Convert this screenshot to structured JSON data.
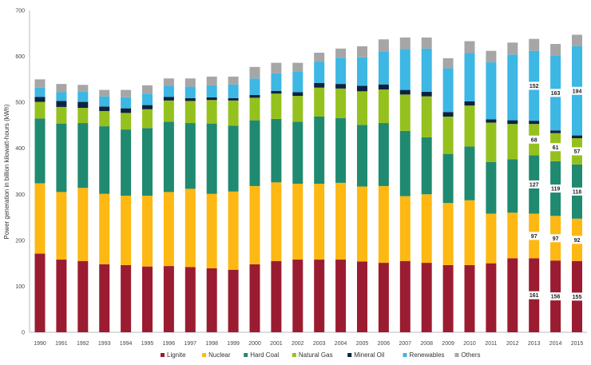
{
  "chart_data": {
    "type": "bar",
    "stacked": true,
    "title": "",
    "xlabel": "",
    "ylabel": "Power generation in billion kilowatt-hours (kWh)",
    "ylim": [
      0,
      700
    ],
    "yticks": [
      0,
      100,
      200,
      300,
      400,
      500,
      600,
      700
    ],
    "grid": false,
    "legend_position": "bottom",
    "categories": [
      "1990",
      "1991",
      "1992",
      "1993",
      "1994",
      "1995",
      "1996",
      "1997",
      "1998",
      "1999",
      "2000",
      "2001",
      "2002",
      "2003",
      "2004",
      "2005",
      "2006",
      "2007",
      "2008",
      "2009",
      "2010",
      "2011",
      "2012",
      "2013",
      "2014",
      "2015"
    ],
    "series": [
      {
        "name": "Lignite",
        "color": "#9b1c31",
        "values": [
          171,
          158,
          155,
          148,
          146,
          143,
          144,
          142,
          139,
          136,
          148,
          155,
          158,
          158,
          158,
          154,
          151,
          155,
          151,
          146,
          146,
          150,
          161,
          161,
          156,
          155
        ]
      },
      {
        "name": "Nuclear",
        "color": "#fdb813",
        "values": [
          153,
          147,
          159,
          153,
          151,
          154,
          161,
          170,
          162,
          170,
          170,
          171,
          165,
          165,
          167,
          163,
          167,
          141,
          149,
          135,
          141,
          108,
          99,
          97,
          97,
          92
        ]
      },
      {
        "name": "Hard Coal",
        "color": "#1f8a70",
        "values": [
          141,
          149,
          141,
          147,
          144,
          147,
          153,
          143,
          153,
          143,
          143,
          138,
          135,
          146,
          141,
          134,
          137,
          142,
          124,
          107,
          117,
          112,
          116,
          127,
          119,
          118
        ]
      },
      {
        "name": "Natural Gas",
        "color": "#95c11f",
        "values": [
          36,
          36,
          33,
          33,
          36,
          41,
          46,
          48,
          51,
          55,
          49,
          55,
          56,
          63,
          64,
          73,
          73,
          79,
          89,
          81,
          89,
          86,
          77,
          68,
          61,
          57
        ]
      },
      {
        "name": "Mineral Oil",
        "color": "#0d2240",
        "values": [
          11,
          13,
          13,
          10,
          10,
          9,
          8,
          6,
          6,
          5,
          6,
          6,
          8,
          10,
          10,
          12,
          11,
          10,
          10,
          10,
          9,
          7,
          8,
          7,
          6,
          6
        ]
      },
      {
        "name": "Renewables",
        "color": "#3db7e4",
        "values": [
          20,
          19,
          22,
          22,
          24,
          25,
          24,
          25,
          26,
          30,
          36,
          38,
          45,
          46,
          57,
          62,
          72,
          89,
          94,
          95,
          105,
          124,
          143,
          152,
          163,
          194
        ]
      },
      {
        "name": "Others",
        "color": "#a6a6a6",
        "values": [
          18,
          18,
          15,
          14,
          16,
          18,
          16,
          18,
          19,
          17,
          25,
          23,
          19,
          20,
          20,
          24,
          26,
          25,
          24,
          22,
          26,
          25,
          26,
          26,
          25,
          25
        ]
      }
    ],
    "data_labels": [
      {
        "category": "2013",
        "series": "Lignite",
        "text": "161"
      },
      {
        "category": "2014",
        "series": "Lignite",
        "text": "156"
      },
      {
        "category": "2015",
        "series": "Lignite",
        "text": "155"
      },
      {
        "category": "2013",
        "series": "Nuclear",
        "text": "97"
      },
      {
        "category": "2014",
        "series": "Nuclear",
        "text": "97"
      },
      {
        "category": "2015",
        "series": "Nuclear",
        "text": "92"
      },
      {
        "category": "2013",
        "series": "Hard Coal",
        "text": "127"
      },
      {
        "category": "2014",
        "series": "Hard Coal",
        "text": "119"
      },
      {
        "category": "2015",
        "series": "Hard Coal",
        "text": "118"
      },
      {
        "category": "2013",
        "series": "Natural Gas",
        "text": "68"
      },
      {
        "category": "2014",
        "series": "Natural Gas",
        "text": "61"
      },
      {
        "category": "2015",
        "series": "Natural Gas",
        "text": "57"
      },
      {
        "category": "2013",
        "series": "Renewables",
        "text": "152"
      },
      {
        "category": "2014",
        "series": "Renewables",
        "text": "163"
      },
      {
        "category": "2015",
        "series": "Renewables",
        "text": "194"
      }
    ]
  }
}
